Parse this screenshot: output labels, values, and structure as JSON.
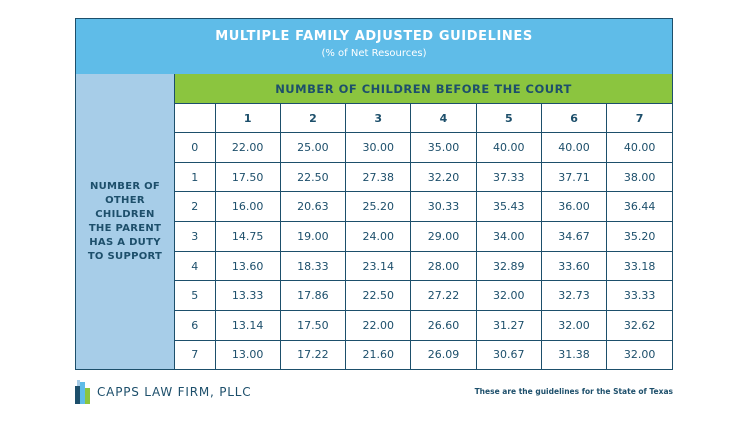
{
  "header": {
    "title": "MULTIPLE FAMILY ADJUSTED GUIDELINES",
    "subtitle": "(% of Net Resources)"
  },
  "side_label": [
    "NUMBER OF",
    "OTHER",
    "CHILDREN",
    "THE PARENT",
    "HAS A DUTY",
    "TO SUPPORT"
  ],
  "column_group_label": "NUMBER OF CHILDREN BEFORE THE COURT",
  "table": {
    "columns": [
      "1",
      "2",
      "3",
      "4",
      "5",
      "6",
      "7"
    ],
    "rows": [
      {
        "label": "0",
        "values": [
          "22.00",
          "25.00",
          "30.00",
          "35.00",
          "40.00",
          "40.00",
          "40.00"
        ]
      },
      {
        "label": "1",
        "values": [
          "17.50",
          "22.50",
          "27.38",
          "32.20",
          "37.33",
          "37.71",
          "38.00"
        ]
      },
      {
        "label": "2",
        "values": [
          "16.00",
          "20.63",
          "25.20",
          "30.33",
          "35.43",
          "36.00",
          "36.44"
        ]
      },
      {
        "label": "3",
        "values": [
          "14.75",
          "19.00",
          "24.00",
          "29.00",
          "34.00",
          "34.67",
          "35.20"
        ]
      },
      {
        "label": "4",
        "values": [
          "13.60",
          "18.33",
          "23.14",
          "28.00",
          "32.89",
          "33.60",
          "33.18"
        ]
      },
      {
        "label": "5",
        "values": [
          "13.33",
          "17.86",
          "22.50",
          "27.22",
          "32.00",
          "32.73",
          "33.33"
        ]
      },
      {
        "label": "6",
        "values": [
          "13.14",
          "17.50",
          "22.00",
          "26.60",
          "31.27",
          "32.00",
          "32.62"
        ]
      },
      {
        "label": "7",
        "values": [
          "13.00",
          "17.22",
          "21.60",
          "26.09",
          "30.67",
          "31.38",
          "32.00"
        ]
      }
    ]
  },
  "footer": {
    "logo_text": "CAPPS LAW FIRM, PLLC",
    "note": "These are the guidelines for the State of Texas"
  },
  "colors": {
    "title_bg": "#5fbce8",
    "side_bg": "#a7cde8",
    "green": "#8bc53f",
    "navy": "#1d4f6b"
  },
  "icons": {
    "logo": "capps-logo-mark-icon"
  }
}
